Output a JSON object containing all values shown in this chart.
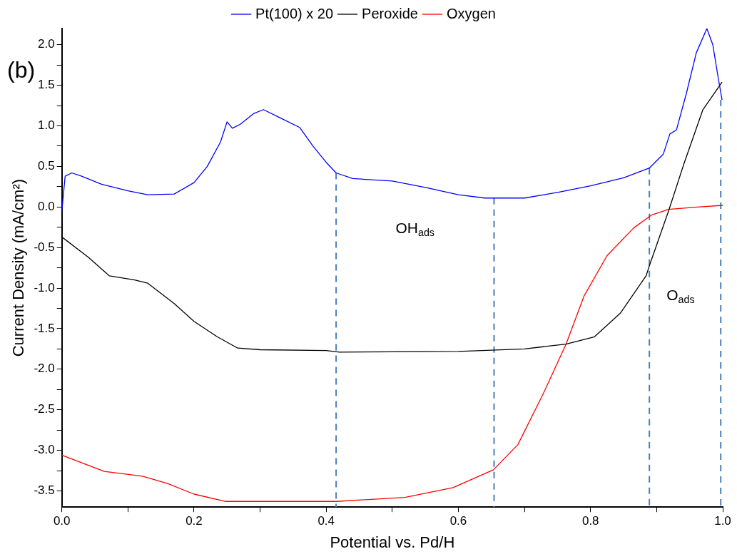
{
  "chart_data": {
    "type": "line",
    "xlabel": "Potential vs. Pd/H",
    "ylabel": "Current Density (mA/cm²)",
    "legend": "top",
    "grid": false,
    "marker": "none",
    "xlim": [
      0,
      1.0
    ],
    "ylim": [
      -3.7,
      2.2
    ],
    "xticks": [
      {
        "value": 0,
        "label": "0.0"
      },
      {
        "value": 0.1,
        "label": null
      },
      {
        "value": 0.2,
        "label": "0.2"
      },
      {
        "value": 0.3,
        "label": null
      },
      {
        "value": 0.4,
        "label": "0.4"
      },
      {
        "value": 0.5,
        "label": null
      },
      {
        "value": 0.6,
        "label": "0.6"
      },
      {
        "value": 0.7,
        "label": null
      },
      {
        "value": 0.8,
        "label": "0.8"
      },
      {
        "value": 0.9,
        "label": null
      },
      {
        "value": 1.0,
        "label": "1.0"
      }
    ],
    "yticks": [
      {
        "value": -3.5,
        "label": "-3.5"
      },
      {
        "value": -3.25,
        "label": null
      },
      {
        "value": -3.0,
        "label": "-3.0"
      },
      {
        "value": -2.75,
        "label": null
      },
      {
        "value": -2.5,
        "label": "-2.5"
      },
      {
        "value": -2.25,
        "label": null
      },
      {
        "value": -2.0,
        "label": "-2.0"
      },
      {
        "value": -1.75,
        "label": null
      },
      {
        "value": -1.5,
        "label": "-1.5"
      },
      {
        "value": -1.25,
        "label": null
      },
      {
        "value": -1.0,
        "label": "-1.0"
      },
      {
        "value": -0.75,
        "label": null
      },
      {
        "value": -0.5,
        "label": "-0.5"
      },
      {
        "value": -0.25,
        "label": null
      },
      {
        "value": 0,
        "label": "0.0"
      },
      {
        "value": 0.25,
        "label": null
      },
      {
        "value": 0.5,
        "label": "0.5"
      },
      {
        "value": 0.75,
        "label": null
      },
      {
        "value": 1.0,
        "label": "1.0"
      },
      {
        "value": 1.25,
        "label": null
      },
      {
        "value": 1.5,
        "label": "1.5"
      },
      {
        "value": 1.75,
        "label": null
      },
      {
        "value": 2.0,
        "label": "2.0"
      }
    ],
    "annotations": [
      "(b)",
      "OH$_{ads}$",
      "O$_{ads}$"
    ],
    "series": [
      {
        "name": "Pt(100) x 20",
        "color": "#0000ff",
        "x": [
          0,
          0.005,
          0.015,
          0.03,
          0.06,
          0.1,
          0.13,
          0.17,
          0.2,
          0.22,
          0.24,
          0.25,
          0.258,
          0.27,
          0.29,
          0.305,
          0.33,
          0.36,
          0.38,
          0.4,
          0.415,
          0.44,
          0.5,
          0.55,
          0.6,
          0.64,
          0.7,
          0.75,
          0.8,
          0.85,
          0.889,
          0.91,
          0.92,
          0.93,
          0.945,
          0.96,
          0.976,
          0.985,
          0.993,
          0.999
        ],
        "values": [
          -0.05,
          0.38,
          0.42,
          0.38,
          0.28,
          0.2,
          0.15,
          0.16,
          0.3,
          0.5,
          0.8,
          1.05,
          0.97,
          1.02,
          1.15,
          1.2,
          1.1,
          0.98,
          0.75,
          0.55,
          0.42,
          0.35,
          0.32,
          0.24,
          0.15,
          0.11,
          0.11,
          0.18,
          0.26,
          0.36,
          0.48,
          0.65,
          0.9,
          0.95,
          1.4,
          1.9,
          2.2,
          2.0,
          1.6,
          1.32
        ]
      },
      {
        "name": "Peroxide",
        "color": "#000000",
        "x": [
          0,
          0.04,
          0.072,
          0.11,
          0.13,
          0.17,
          0.2,
          0.235,
          0.266,
          0.3,
          0.4,
          0.42,
          0.6,
          0.7,
          0.763,
          0.806,
          0.845,
          0.884,
          0.89,
          0.918,
          0.942,
          0.97,
          0.999
        ],
        "values": [
          -0.37,
          -0.62,
          -0.85,
          -0.9,
          -0.94,
          -1.19,
          -1.41,
          -1.6,
          -1.74,
          -1.76,
          -1.77,
          -1.79,
          -1.78,
          -1.75,
          -1.69,
          -1.6,
          -1.31,
          -0.85,
          -0.7,
          -0.05,
          0.55,
          1.2,
          1.54
        ]
      },
      {
        "name": "Oxygen",
        "color": "#ff0000",
        "x": [
          0,
          0.064,
          0.122,
          0.16,
          0.2,
          0.247,
          0.3,
          0.415,
          0.519,
          0.592,
          0.653,
          0.69,
          0.728,
          0.763,
          0.79,
          0.825,
          0.865,
          0.892,
          0.918,
          0.962,
          1.0
        ],
        "values": [
          -3.06,
          -3.26,
          -3.32,
          -3.41,
          -3.54,
          -3.63,
          -3.63,
          -3.63,
          -3.58,
          -3.46,
          -3.24,
          -2.93,
          -2.31,
          -1.69,
          -1.1,
          -0.6,
          -0.26,
          -0.1,
          -0.03,
          0.0,
          0.02
        ]
      },
      {
        "color": "#4a7ebb",
        "line_style": "dashed",
        "x": [
          0.415,
          0.415
        ],
        "values": [
          0.42,
          -3.7
        ]
      },
      {
        "color": "#4a7ebb",
        "line_style": "dashed",
        "x": [
          0.654,
          0.654
        ],
        "values": [
          0.11,
          -3.7
        ]
      },
      {
        "color": "#4a7ebb",
        "line_style": "dashed",
        "x": [
          0.889,
          0.889
        ],
        "values": [
          0.48,
          -3.7
        ]
      },
      {
        "color": "#4a7ebb",
        "line_style": "dashed",
        "x": [
          0.997,
          0.997
        ],
        "values": [
          1.32,
          -3.7
        ]
      }
    ]
  }
}
